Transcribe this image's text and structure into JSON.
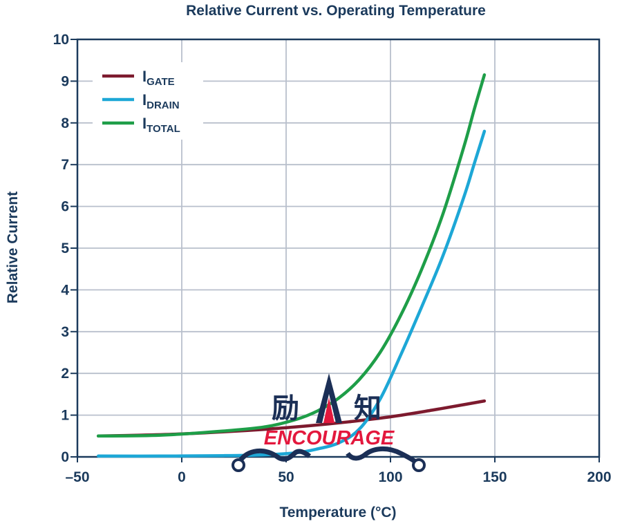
{
  "chart_data": {
    "type": "line",
    "title": "Relative Current vs. Operating Temperature",
    "xlabel": "Temperature (°C)",
    "ylabel": "Relative Current",
    "xlim": [
      -50,
      200
    ],
    "ylim": [
      0,
      10
    ],
    "x_ticks": [
      {
        "value": -50,
        "label": "–50"
      },
      {
        "value": 0,
        "label": "0"
      },
      {
        "value": 50,
        "label": "50"
      },
      {
        "value": 100,
        "label": "100"
      },
      {
        "value": 150,
        "label": "150"
      },
      {
        "value": 200,
        "label": "200"
      }
    ],
    "x_grid": [
      0,
      50,
      100,
      150
    ],
    "y_ticks": [
      0,
      1,
      2,
      3,
      4,
      5,
      6,
      7,
      8,
      9,
      10
    ],
    "grid": true,
    "legend_position": "top-left",
    "series": [
      {
        "name": "IGATE",
        "main": "I",
        "sub": "GATE",
        "color": "#7d1a2e",
        "x": [
          -40,
          -20,
          0,
          20,
          40,
          60,
          80,
          100,
          120,
          135,
          145
        ],
        "y": [
          0.5,
          0.52,
          0.55,
          0.6,
          0.66,
          0.74,
          0.84,
          0.96,
          1.12,
          1.25,
          1.34
        ]
      },
      {
        "name": "IDRAIN",
        "main": "I",
        "sub": "DRAIN",
        "color": "#1da7d6",
        "x": [
          -40,
          -10,
          20,
          40,
          55,
          65,
          75,
          85,
          95,
          105,
          115,
          125,
          135,
          140,
          145
        ],
        "y": [
          0.02,
          0.02,
          0.03,
          0.05,
          0.1,
          0.19,
          0.33,
          0.66,
          1.38,
          2.45,
          3.6,
          4.8,
          6.2,
          7.0,
          7.8
        ]
      },
      {
        "name": "ITOTAL",
        "main": "I",
        "sub": "TOTAL",
        "color": "#1e9e48",
        "x": [
          -40,
          -10,
          20,
          40,
          55,
          65,
          75,
          85,
          95,
          105,
          115,
          125,
          135,
          140,
          145
        ],
        "y": [
          0.5,
          0.52,
          0.62,
          0.72,
          0.9,
          1.1,
          1.4,
          1.85,
          2.5,
          3.4,
          4.5,
          5.8,
          7.4,
          8.3,
          9.15
        ]
      }
    ]
  },
  "watermark": {
    "left_chars": "励",
    "right_chars": "知",
    "text": "ENCOURAGE"
  }
}
